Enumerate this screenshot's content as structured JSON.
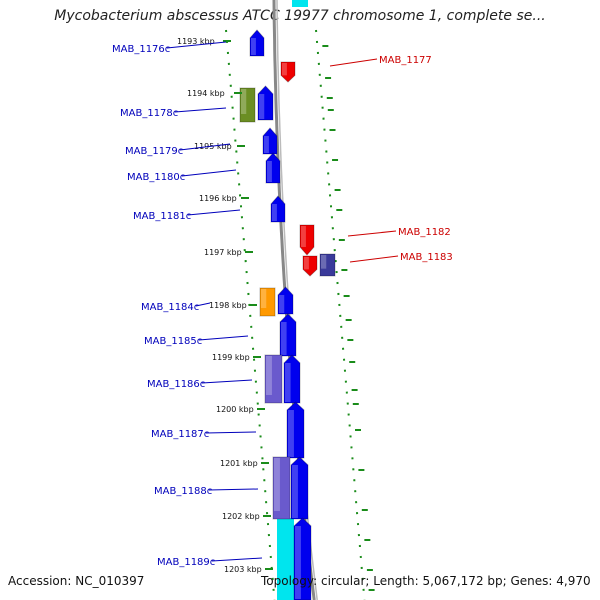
{
  "title": "Mycobacterium abscessus ATCC 19977 chromosome 1, complete se...",
  "footer": {
    "accession": "Accession: NC_010397",
    "summary": "Topology: circular; Length: 5,067,172 bp; Genes: 4,970"
  },
  "colors": {
    "forward_label": "#cc0000",
    "reverse_label": "#0000bb",
    "tick": "#1a8c1a",
    "backbone": "#888888",
    "gene_blue": "#0000ee",
    "gene_red": "#ee0000",
    "gene_olive": "#6b8e23",
    "gene_orange": "#ff9900",
    "gene_purple": "#6a5acd",
    "gene_navy": "#3a3a9a",
    "gene_cyan": "#00e5ee"
  },
  "scale_ticks": [
    "1193 kbp",
    "1194 kbp",
    "1195 kbp",
    "1196 kbp",
    "1197 kbp",
    "1198 kbp",
    "1199 kbp",
    "1200 kbp",
    "1201 kbp",
    "1202 kbp",
    "1203 kbp"
  ],
  "genes": [
    {
      "label": "MAB_1176c",
      "strand": "reverse"
    },
    {
      "label": "MAB_1177",
      "strand": "forward"
    },
    {
      "label": "MAB_1178c",
      "strand": "reverse"
    },
    {
      "label": "MAB_1179c",
      "strand": "reverse"
    },
    {
      "label": "MAB_1180c",
      "strand": "reverse"
    },
    {
      "label": "MAB_1181c",
      "strand": "reverse"
    },
    {
      "label": "MAB_1182",
      "strand": "forward"
    },
    {
      "label": "MAB_1183",
      "strand": "forward"
    },
    {
      "label": "MAB_1184c",
      "strand": "reverse"
    },
    {
      "label": "MAB_1185c",
      "strand": "reverse"
    },
    {
      "label": "MAB_1186c",
      "strand": "reverse"
    },
    {
      "label": "MAB_1187c",
      "strand": "reverse"
    },
    {
      "label": "MAB_1188c",
      "strand": "reverse"
    },
    {
      "label": "MAB_1189c",
      "strand": "reverse"
    }
  ]
}
